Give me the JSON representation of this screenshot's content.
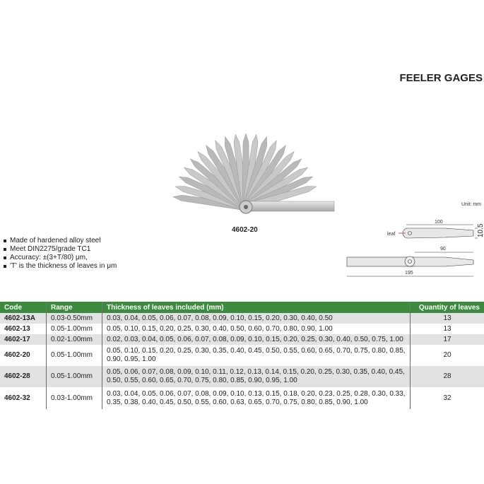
{
  "title": "FEELER GAGES",
  "product_caption": "4602-20",
  "features": [
    "Made of hardened alloy steel",
    "Meet DIN2275/grade TC1",
    "Accuracy: ±(3+T/80) μm,",
    "'T' is the thickness of leaves in μm"
  ],
  "drawing": {
    "unit": "Unit: mm",
    "leaf_label": "leaf",
    "dim_length_leaf": "100",
    "dim_width": "10.5",
    "dim_90": "90",
    "dim_total": "195"
  },
  "table": {
    "headers": [
      "Code",
      "Range",
      "Thickness of leaves included (mm)",
      "Quantity of leaves"
    ],
    "rows": [
      {
        "code": "4602-13A",
        "range": "0.03-0.50mm",
        "thickness": "0.03, 0.04, 0.05, 0.06, 0.07, 0.08, 0.09, 0.10, 0.15, 0.20, 0.30, 0.40, 0.50",
        "qty": "13"
      },
      {
        "code": "4602-13",
        "range": "0.05-1.00mm",
        "thickness": "0.05, 0.10, 0.15, 0.20, 0.25, 0.30, 0.40, 0.50, 0.60, 0.70, 0.80, 0.90, 1.00",
        "qty": "13"
      },
      {
        "code": "4602-17",
        "range": "0.02-1.00mm",
        "thickness": "0.02, 0.03, 0.04, 0.05, 0.06, 0.07, 0.08, 0.09, 0.10, 0.15, 0.20, 0.25, 0.30, 0.40, 0.50, 0.75, 1.00",
        "qty": "17"
      },
      {
        "code": "4602-20",
        "range": "0.05-1.00mm",
        "thickness": "0.05, 0.10, 0.15, 0.20, 0.25, 0.30, 0.35, 0.40, 0.45, 0.50, 0.55, 0.60, 0.65, 0.70, 0.75, 0.80, 0.85, 0.90, 0.95, 1.00",
        "qty": "20"
      },
      {
        "code": "4602-28",
        "range": "0.05-1.00mm",
        "thickness": "0.05, 0.06, 0.07, 0.08, 0.09, 0.10, 0.11, 0.12, 0.13, 0.14, 0.15, 0.20, 0.25, 0.30, 0.35, 0.40, 0.45, 0.50, 0.55, 0.60, 0.65, 0.70, 0.75, 0.80, 0.85, 0.90, 0.95, 1.00",
        "qty": "28"
      },
      {
        "code": "4602-32",
        "range": "0.03-1.00mm",
        "thickness": "0.03, 0.04, 0.05, 0.06, 0.07, 0.08, 0.09, 0.10, 0.13, 0.15, 0.18, 0.20, 0.23, 0.25, 0.28, 0.30, 0.33, 0.35, 0.38, 0.40, 0.45, 0.50, 0.55, 0.60, 0.63, 0.65, 0.70, 0.75, 0.80, 0.85, 0.90, 1.00",
        "qty": "32"
      }
    ]
  },
  "colors": {
    "header_green": "#3d8b3f",
    "row_gray": "#e2e2e2"
  }
}
